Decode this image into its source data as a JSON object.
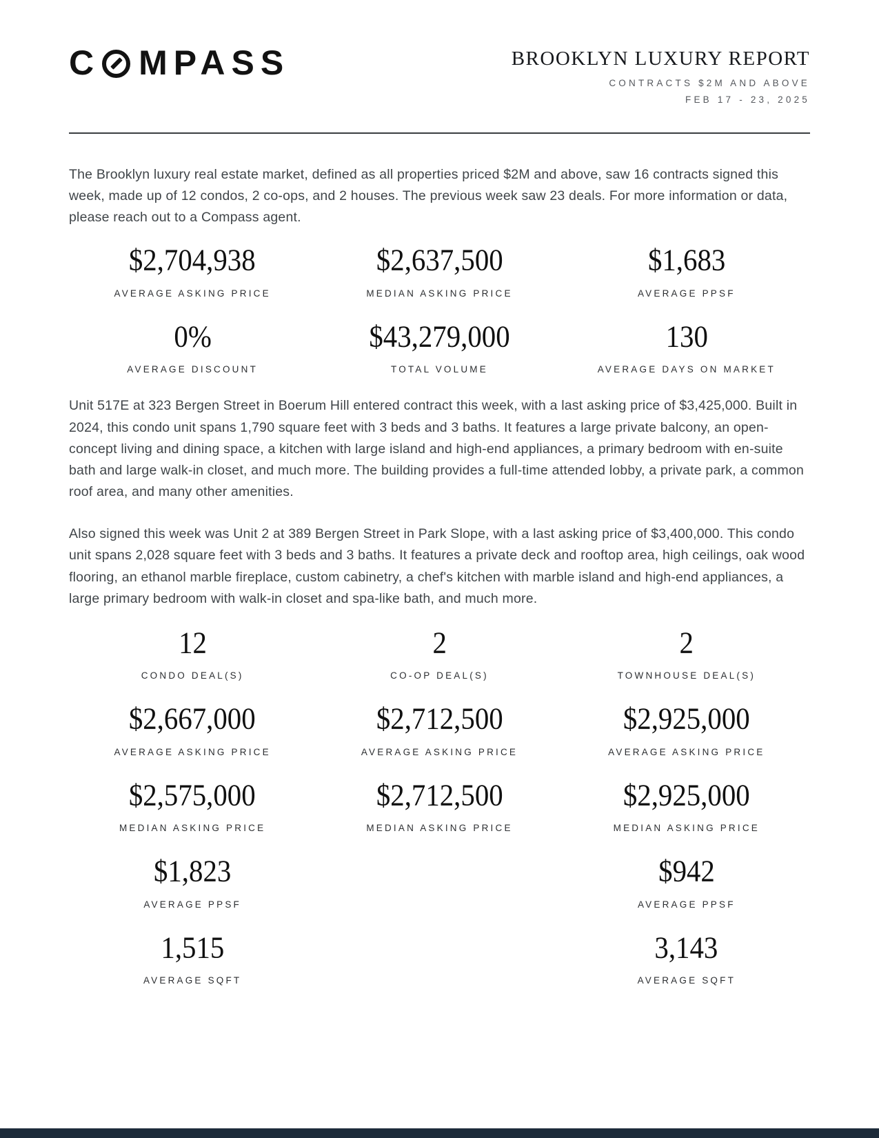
{
  "header": {
    "logo_text": "COMPASS",
    "logo_part1": "C",
    "logo_part2": "MPASS",
    "title": "BROOKLYN LUXURY REPORT",
    "subtitle": "CONTRACTS $2M AND ABOVE",
    "date_range": "FEB 17 - 23, 2025"
  },
  "intro": "The Brooklyn luxury real estate market, defined as all properties priced $2M and above, saw 16 contracts signed this week, made up of 12 condos, 2 co-ops, and 2 houses. The previous week saw 23 deals. For more information or data, please reach out to a Compass agent.",
  "summary_stats": [
    {
      "value": "$2,704,938",
      "label": "AVERAGE ASKING PRICE"
    },
    {
      "value": "$2,637,500",
      "label": "MEDIAN ASKING PRICE"
    },
    {
      "value": "$1,683",
      "label": "AVERAGE PPSF"
    },
    {
      "value": "0%",
      "label": "AVERAGE DISCOUNT"
    },
    {
      "value": "$43,279,000",
      "label": "TOTAL VOLUME"
    },
    {
      "value": "130",
      "label": "AVERAGE DAYS ON MARKET"
    }
  ],
  "paragraphs": [
    "Unit 517E at 323 Bergen Street in Boerum Hill entered contract this week, with a last asking price of $3,425,000. Built in 2024, this condo unit spans 1,790 square feet with 3 beds and 3 baths. It features a large private balcony, an open-concept living and dining space, a kitchen with large island and high-end appliances, a primary bedroom with en-suite bath and large walk-in closet, and much more. The building provides a full-time attended lobby, a private park, a common roof area, and many other amenities.",
    "Also signed this week was Unit 2 at 389 Bergen Street in Park Slope, with a last asking price of $3,400,000. This condo unit spans 2,028 square feet with 3 beds and 3 baths. It features a private deck and rooftop area, high ceilings, oak wood flooring, an ethanol marble fireplace, custom cabinetry, a chef's kitchen with marble island and high-end appliances, a large primary bedroom with walk-in closet and spa-like bath, and much more."
  ],
  "breakdown_rows": [
    {
      "cells": [
        {
          "value": "12",
          "label": "CONDO DEAL(S)"
        },
        {
          "value": "2",
          "label": "CO-OP DEAL(S)"
        },
        {
          "value": "2",
          "label": "TOWNHOUSE DEAL(S)"
        }
      ]
    },
    {
      "cells": [
        {
          "value": "$2,667,000",
          "label": "AVERAGE ASKING PRICE"
        },
        {
          "value": "$2,712,500",
          "label": "AVERAGE ASKING PRICE"
        },
        {
          "value": "$2,925,000",
          "label": "AVERAGE ASKING PRICE"
        }
      ]
    },
    {
      "cells": [
        {
          "value": "$2,575,000",
          "label": "MEDIAN ASKING PRICE"
        },
        {
          "value": "$2,712,500",
          "label": "MEDIAN ASKING PRICE"
        },
        {
          "value": "$2,925,000",
          "label": "MEDIAN ASKING PRICE"
        }
      ]
    },
    {
      "cells": [
        {
          "value": "$1,823",
          "label": "AVERAGE PPSF"
        },
        {
          "value": "",
          "label": ""
        },
        {
          "value": "$942",
          "label": "AVERAGE PPSF"
        }
      ]
    },
    {
      "cells": [
        {
          "value": "1,515",
          "label": "AVERAGE SQFT"
        },
        {
          "value": "",
          "label": ""
        },
        {
          "value": "3,143",
          "label": "AVERAGE SQFT"
        }
      ]
    }
  ],
  "colors": {
    "footer_bar": "#1d2b3a",
    "text_primary": "#101010",
    "text_body": "#404549",
    "text_muted": "#55585d"
  }
}
